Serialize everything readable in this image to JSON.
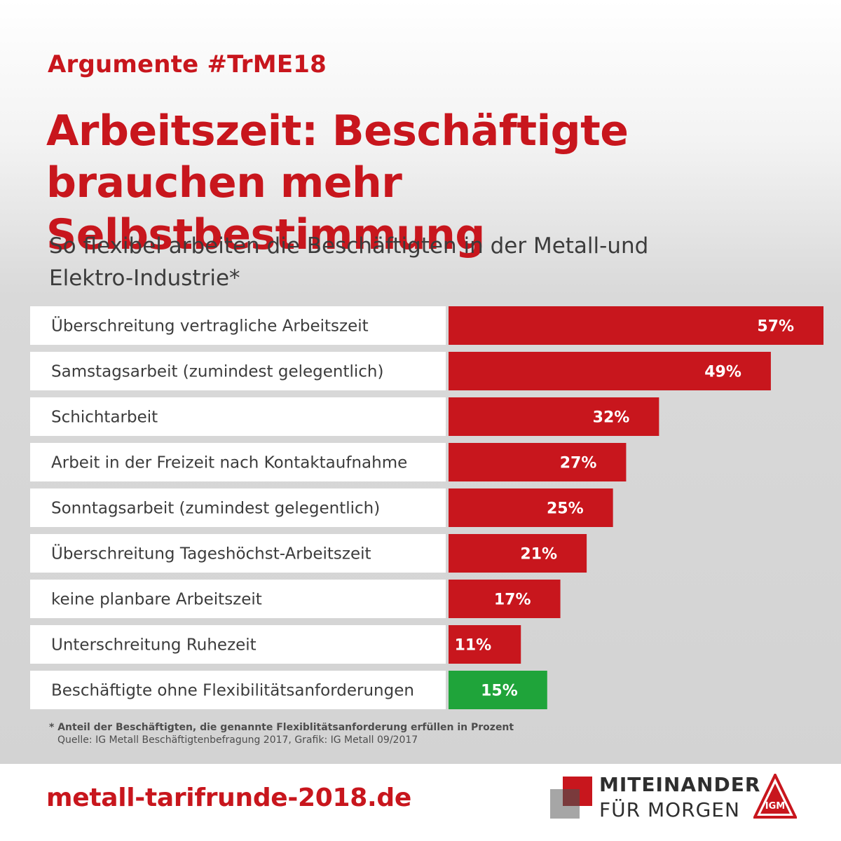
{
  "header": {
    "kicker": "Argumente #TrME18",
    "title": "Arbeitszeit: Beschäftigte brauchen mehr Selbstbestimmung",
    "subtitle": "So flexibel arbeiten die Beschäftigten in der Metall-und Elektro-Industrie*"
  },
  "chart_data": {
    "type": "bar",
    "orientation": "horizontal",
    "unit": "%",
    "xlim": [
      0,
      57
    ],
    "categories": [
      "Überschreitung vertragliche Arbeitszeit",
      "Samstagsarbeit (zumindest gelegentlich)",
      "Schichtarbeit",
      "Arbeit in der Freizeit nach Kontaktaufnahme",
      "Sonntagsarbeit (zumindest gelegentlich)",
      "Überschreitung Tageshöchst-Arbeitszeit",
      "keine planbare Arbeitszeit",
      "Unterschreitung Ruhezeit",
      "Beschäftigte ohne Flexibilitätsanforderungen"
    ],
    "values": [
      57,
      49,
      32,
      27,
      25,
      21,
      17,
      11,
      15
    ],
    "value_labels": [
      "57%",
      "49%",
      "32%",
      "27%",
      "25%",
      "21%",
      "17%",
      "11%",
      "15%"
    ],
    "bar_colors": [
      "#c8161d",
      "#c8161d",
      "#c8161d",
      "#c8161d",
      "#c8161d",
      "#c8161d",
      "#c8161d",
      "#c8161d",
      "#1fa43a"
    ],
    "grid": false,
    "legend": "none"
  },
  "footnote": {
    "main": "* Anteil der Beschäftigten, die genannte Flexiblitätsanforderung erfüllen in Prozent",
    "source": "Quelle: IG Metall Beschäftigtenbefragung 2017, Grafik: IG Metall 09/2017"
  },
  "footer": {
    "url": "metall-tarifrunde-2018.de",
    "slogan_line1": "MITEINANDER",
    "slogan_line2": "FÜR MORGEN",
    "logo_text": "IGM"
  },
  "colors": {
    "accent": "#c8161d",
    "positive": "#1fa43a",
    "text": "#3c3c3c"
  }
}
